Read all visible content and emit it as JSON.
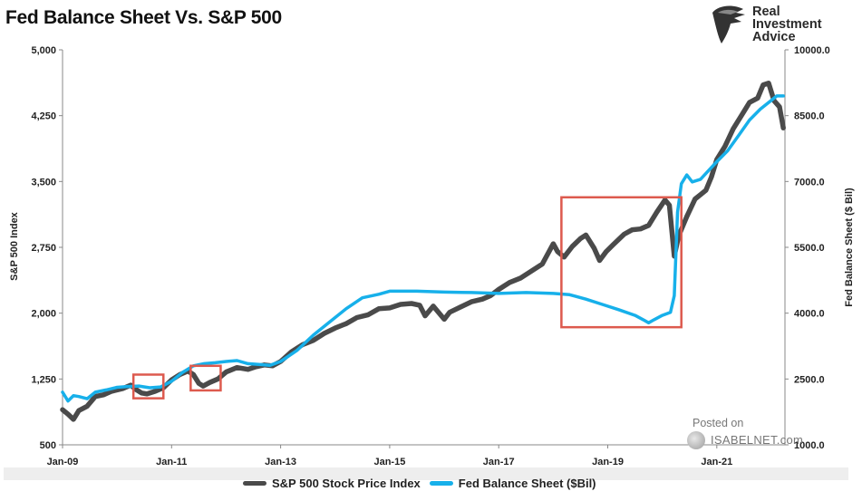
{
  "title": "Fed Balance Sheet Vs. S&P 500",
  "logo": {
    "line1": "Real",
    "line2": "Investment",
    "line3": "Advice",
    "icon": "eagle-head-icon"
  },
  "watermark": {
    "posted": "Posted on",
    "site": "ISABELNET.com",
    "icon": "isabelnet-logo-icon"
  },
  "legend": [
    {
      "label": "S&P 500 Stock Price Index",
      "color": "#4a4a4a"
    },
    {
      "label": "Fed Balance Sheet ($Bil)",
      "color": "#17b0ea"
    }
  ],
  "chart_data": {
    "type": "line",
    "xlabel": "",
    "ylabel_left": "S&P 500 Index",
    "ylabel_right": "Fed Balance Sheet ($ Bil)",
    "x_range": [
      2009.0,
      2022.25
    ],
    "ylim_left": [
      500,
      5000
    ],
    "ylim_right": [
      1000,
      10000
    ],
    "x_ticks": [
      {
        "x": 2009.0,
        "label": "Jan-09"
      },
      {
        "x": 2011.0,
        "label": "Jan-11"
      },
      {
        "x": 2013.0,
        "label": "Jan-13"
      },
      {
        "x": 2015.0,
        "label": "Jan-15"
      },
      {
        "x": 2017.0,
        "label": "Jan-17"
      },
      {
        "x": 2019.0,
        "label": "Jan-19"
      },
      {
        "x": 2021.0,
        "label": "Jan-21"
      }
    ],
    "y_ticks_left": [
      "500",
      "1,250",
      "2,000",
      "2,750",
      "3,500",
      "4,250",
      "5,000"
    ],
    "y_ticks_left_values": [
      500,
      1250,
      2000,
      2750,
      3500,
      4250,
      5000
    ],
    "y_ticks_right": [
      "1000.0",
      "2500.0",
      "4000.0",
      "5500.0",
      "7000.0",
      "8500.0",
      "10000.0"
    ],
    "y_ticks_right_values": [
      1000,
      2500,
      4000,
      5500,
      7000,
      8500,
      10000
    ],
    "grid": false,
    "legend_position": "bottom",
    "series": [
      {
        "name": "S&P 500 Stock Price Index",
        "axis": "left",
        "color": "#4a4a4a",
        "x": [
          2009.0,
          2009.1,
          2009.2,
          2009.3,
          2009.45,
          2009.6,
          2009.75,
          2009.9,
          2010.1,
          2010.25,
          2010.35,
          2010.45,
          2010.55,
          2010.7,
          2010.85,
          2011.0,
          2011.15,
          2011.3,
          2011.4,
          2011.5,
          2011.58,
          2011.7,
          2011.85,
          2012.0,
          2012.2,
          2012.4,
          2012.55,
          2012.7,
          2012.85,
          2013.0,
          2013.2,
          2013.4,
          2013.6,
          2013.8,
          2014.0,
          2014.2,
          2014.4,
          2014.6,
          2014.8,
          2015.0,
          2015.2,
          2015.4,
          2015.55,
          2015.65,
          2015.8,
          2016.0,
          2016.1,
          2016.3,
          2016.5,
          2016.7,
          2016.85,
          2017.0,
          2017.2,
          2017.4,
          2017.6,
          2017.8,
          2018.0,
          2018.08,
          2018.2,
          2018.35,
          2018.5,
          2018.6,
          2018.75,
          2018.85,
          2018.97,
          2019.1,
          2019.3,
          2019.45,
          2019.6,
          2019.75,
          2019.9,
          2020.05,
          2020.13,
          2020.22,
          2020.3,
          2020.45,
          2020.6,
          2020.7,
          2020.8,
          2020.9,
          2021.0,
          2021.15,
          2021.3,
          2021.45,
          2021.6,
          2021.75,
          2021.85,
          2021.95,
          2022.05,
          2022.15,
          2022.22
        ],
        "values": [
          900,
          850,
          790,
          890,
          940,
          1050,
          1070,
          1110,
          1140,
          1180,
          1130,
          1090,
          1080,
          1110,
          1150,
          1240,
          1300,
          1340,
          1300,
          1200,
          1170,
          1210,
          1250,
          1330,
          1380,
          1360,
          1390,
          1410,
          1400,
          1450,
          1560,
          1640,
          1690,
          1770,
          1830,
          1880,
          1950,
          1980,
          2050,
          2060,
          2100,
          2110,
          2090,
          1970,
          2080,
          1930,
          2010,
          2070,
          2130,
          2160,
          2200,
          2270,
          2350,
          2400,
          2480,
          2560,
          2790,
          2700,
          2640,
          2760,
          2850,
          2890,
          2740,
          2600,
          2700,
          2780,
          2900,
          2950,
          2960,
          3000,
          3150,
          3290,
          3230,
          2650,
          2880,
          3100,
          3300,
          3350,
          3400,
          3550,
          3750,
          3900,
          4100,
          4250,
          4400,
          4450,
          4600,
          4620,
          4420,
          4350,
          4110
        ]
      },
      {
        "name": "Fed Balance Sheet ($Bil)",
        "axis": "right",
        "color": "#17b0ea",
        "x": [
          2009.0,
          2009.1,
          2009.2,
          2009.3,
          2009.45,
          2009.6,
          2009.8,
          2010.0,
          2010.2,
          2010.4,
          2010.6,
          2010.8,
          2011.0,
          2011.2,
          2011.4,
          2011.6,
          2011.8,
          2012.0,
          2012.2,
          2012.4,
          2012.6,
          2012.8,
          2013.0,
          2013.3,
          2013.6,
          2013.9,
          2014.2,
          2014.5,
          2014.8,
          2015.0,
          2015.5,
          2016.0,
          2016.5,
          2017.0,
          2017.5,
          2018.0,
          2018.3,
          2018.6,
          2018.9,
          2019.2,
          2019.5,
          2019.65,
          2019.75,
          2019.85,
          2020.0,
          2020.15,
          2020.22,
          2020.28,
          2020.35,
          2020.45,
          2020.55,
          2020.7,
          2020.85,
          2021.0,
          2021.2,
          2021.4,
          2021.6,
          2021.8,
          2022.0,
          2022.1,
          2022.22
        ],
        "values": [
          2200,
          2000,
          2120,
          2100,
          2050,
          2200,
          2250,
          2310,
          2330,
          2340,
          2300,
          2320,
          2450,
          2650,
          2800,
          2850,
          2870,
          2900,
          2920,
          2850,
          2830,
          2810,
          2900,
          3150,
          3500,
          3800,
          4100,
          4350,
          4430,
          4500,
          4500,
          4480,
          4470,
          4450,
          4470,
          4450,
          4420,
          4320,
          4200,
          4080,
          3950,
          3850,
          3780,
          3850,
          3950,
          4020,
          4400,
          6300,
          6950,
          7150,
          6990,
          7050,
          7250,
          7450,
          7700,
          8050,
          8400,
          8650,
          8850,
          8950,
          8950
        ]
      }
    ],
    "annotations": [
      {
        "type": "box",
        "x0": 2010.3,
        "x1": 2010.85,
        "y0": 1030,
        "y1": 1300,
        "axis": "left",
        "color": "#dd5a4e"
      },
      {
        "type": "box",
        "x0": 2011.35,
        "x1": 2011.9,
        "y0": 1120,
        "y1": 1400,
        "axis": "left",
        "color": "#dd5a4e"
      },
      {
        "type": "box",
        "x0": 2018.15,
        "x1": 2020.35,
        "y0": 1840,
        "y1": 3320,
        "axis": "left",
        "color": "#dd5a4e"
      }
    ]
  }
}
